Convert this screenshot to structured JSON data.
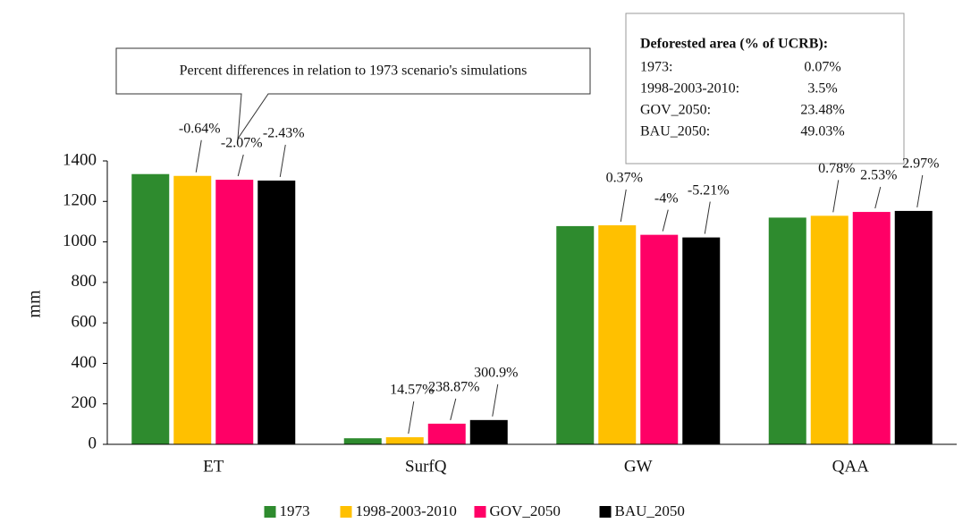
{
  "chart_data": {
    "type": "bar",
    "ylabel": "mm",
    "categories": [
      "ET",
      "SurfQ",
      "GW",
      "QAA"
    ],
    "series": [
      {
        "name": "1973",
        "color": "#2e8b2e",
        "values": [
          1335,
          30,
          1078,
          1120
        ]
      },
      {
        "name": "1998-2003-2010",
        "color": "#ffc000",
        "values": [
          1326,
          35,
          1082,
          1129
        ],
        "value_labels": [
          "-0.64%",
          "14.57%",
          "0.37%",
          "0.78%"
        ]
      },
      {
        "name": "GOV_2050",
        "color": "#ff0066",
        "values": [
          1307,
          102,
          1035,
          1148
        ],
        "value_labels": [
          "-2.07%",
          "238.87%",
          "-4%",
          "2.53%"
        ]
      },
      {
        "name": "BAU_2050",
        "color": "#000000",
        "values": [
          1303,
          120,
          1022,
          1153
        ],
        "value_labels": [
          "-2.43%",
          "300.9%",
          "-5.21%",
          "2.97%"
        ]
      }
    ],
    "ylim": [
      0,
      1400
    ],
    "yticks": [
      0,
      200,
      400,
      600,
      800,
      1000,
      1200,
      1400
    ],
    "callout": "Percent differences in relation to 1973 scenario's simulations",
    "info_box": {
      "title": "Deforested area (% of UCRB):",
      "rows": [
        [
          "1973:",
          "0.07%"
        ],
        [
          "1998-2003-2010:",
          "3.5%"
        ],
        [
          "GOV_2050:",
          "23.48%"
        ],
        [
          "BAU_2050:",
          "49.03%"
        ]
      ]
    }
  }
}
